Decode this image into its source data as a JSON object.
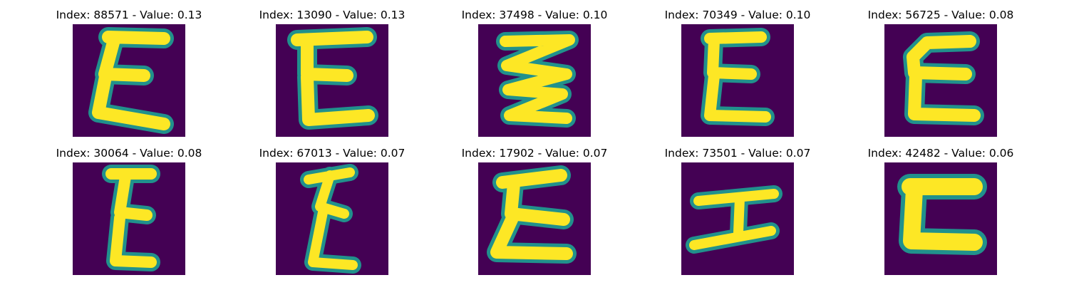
{
  "colors": {
    "background": "#440154",
    "mid": "#21918c",
    "high": "#fde725"
  },
  "panels": [
    {
      "title": "Index: 88571 - Value: 0.13",
      "glyph": "E-variant-1"
    },
    {
      "title": "Index: 13090 - Value: 0.13",
      "glyph": "E-variant-2"
    },
    {
      "title": "Index: 37498 - Value: 0.10",
      "glyph": "E-variant-3"
    },
    {
      "title": "Index: 70349 - Value: 0.10",
      "glyph": "E-variant-4"
    },
    {
      "title": "Index: 56725 - Value: 0.08",
      "glyph": "E-variant-5"
    },
    {
      "title": "Index: 30064 - Value: 0.08",
      "glyph": "E-variant-6"
    },
    {
      "title": "Index: 67013 - Value: 0.07",
      "glyph": "E-variant-7"
    },
    {
      "title": "Index: 17902 - Value: 0.07",
      "glyph": "E-variant-8"
    },
    {
      "title": "Index: 73501 - Value: 0.07",
      "glyph": "I-variant"
    },
    {
      "title": "Index: 42482 - Value: 0.06",
      "glyph": "C-variant"
    }
  ]
}
